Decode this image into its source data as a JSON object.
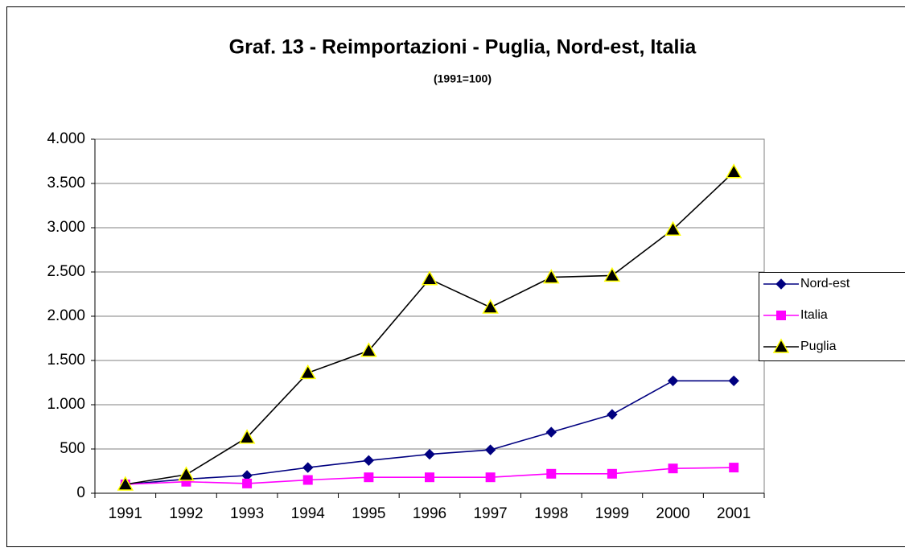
{
  "chart_data": {
    "type": "line",
    "title": "Graf. 13 - Reimportazioni -  Puglia, Nord-est, Italia",
    "subtitle": "(1991=100)",
    "categories": [
      "1991",
      "1992",
      "1993",
      "1994",
      "1995",
      "1996",
      "1997",
      "1998",
      "1999",
      "2000",
      "2001"
    ],
    "series": [
      {
        "name": "Nord-est",
        "color": "#000080",
        "marker": "diamond",
        "values": [
          100,
          160,
          200,
          290,
          370,
          440,
          490,
          690,
          890,
          1270,
          1270
        ]
      },
      {
        "name": "Italia",
        "color": "#ff00ff",
        "marker": "square",
        "values": [
          100,
          130,
          110,
          150,
          180,
          180,
          180,
          220,
          220,
          280,
          290
        ]
      },
      {
        "name": "Puglia",
        "color": "#000000",
        "marker": "triangle",
        "marker_edge": "#ffff00",
        "values": [
          100,
          210,
          630,
          1360,
          1610,
          2420,
          2100,
          2440,
          2460,
          2980,
          3630
        ]
      }
    ],
    "ylim": [
      0,
      4000
    ],
    "yticks": [
      0,
      500,
      {
        "value": 1000,
        "label": "1.000"
      },
      {
        "value": 1500,
        "label": "1.500"
      },
      {
        "value": 2000,
        "label": "2.000"
      },
      {
        "value": 2500,
        "label": "2.500"
      },
      {
        "value": 3000,
        "label": "3.000"
      },
      {
        "value": 3500,
        "label": "3.500"
      },
      {
        "value": 4000,
        "label": "4.000"
      }
    ],
    "grid": true,
    "legend": "right"
  }
}
